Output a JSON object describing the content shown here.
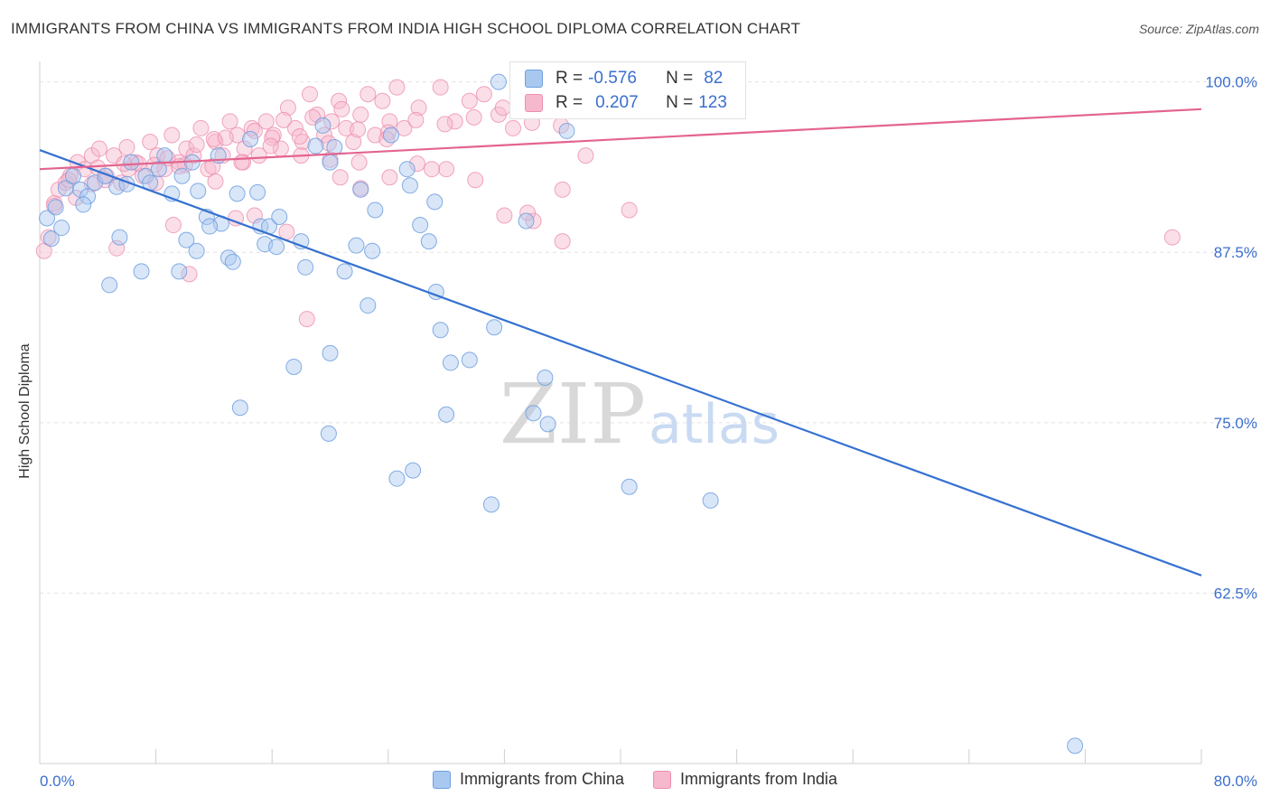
{
  "header": {
    "title": "IMMIGRANTS FROM CHINA VS IMMIGRANTS FROM INDIA HIGH SCHOOL DIPLOMA CORRELATION CHART",
    "source": "Source: ZipAtlas.com"
  },
  "watermark": {
    "zip": "ZIP",
    "atlas": "atlas"
  },
  "stats_box": {
    "china": {
      "r_label": "R =",
      "r_value": "-0.576",
      "n_label": "N =",
      "n_value": "82"
    },
    "india": {
      "r_label": "R =",
      "r_value": "0.207",
      "n_label": "N =",
      "n_value": "123"
    }
  },
  "legend": {
    "china": "Immigrants from China",
    "india": "Immigrants from India"
  },
  "colors": {
    "china_fill": "#a9c8ef",
    "china_stroke": "#6e9fe0",
    "china_line": "#3571d0",
    "india_fill": "#f6b8cc",
    "india_stroke": "#ee8fae",
    "india_line": "#e3648f",
    "tick_label": "#3b6fcf",
    "grid": "#e3e3e3"
  },
  "chart_data": {
    "type": "scatter",
    "title": "IMMIGRANTS FROM CHINA VS IMMIGRANTS FROM INDIA HIGH SCHOOL DIPLOMA CORRELATION CHART",
    "xlabel": "",
    "ylabel": "High School Diploma",
    "xlim": [
      0,
      80
    ],
    "ylim": [
      50,
      101.5
    ],
    "x_tick_labels": [
      "0.0%",
      "80.0%"
    ],
    "y_ticks": [
      62.5,
      75.0,
      87.5,
      100.0
    ],
    "y_tick_labels": [
      "62.5%",
      "75.0%",
      "87.5%",
      "100.0%"
    ],
    "grid": true,
    "legend_position": "bottom",
    "series": [
      {
        "name": "Immigrants from China",
        "r": -0.576,
        "n": 82,
        "trend": {
          "x": [
            0,
            80
          ],
          "y": [
            95.0,
            63.8
          ]
        },
        "points": [
          [
            0.5,
            90.0
          ],
          [
            0.8,
            88.5
          ],
          [
            1.1,
            90.8
          ],
          [
            1.5,
            89.3
          ],
          [
            1.8,
            92.2
          ],
          [
            2.3,
            93.1
          ],
          [
            2.8,
            92.1
          ],
          [
            3.3,
            91.6
          ],
          [
            3.8,
            92.6
          ],
          [
            4.5,
            93.1
          ],
          [
            5.3,
            92.3
          ],
          [
            5.5,
            88.6
          ],
          [
            6.3,
            94.1
          ],
          [
            7.0,
            86.1
          ],
          [
            7.3,
            93.1
          ],
          [
            7.6,
            92.6
          ],
          [
            8.2,
            93.6
          ],
          [
            8.6,
            94.6
          ],
          [
            9.1,
            91.8
          ],
          [
            9.6,
            86.1
          ],
          [
            10.1,
            88.4
          ],
          [
            10.5,
            94.1
          ],
          [
            10.8,
            87.6
          ],
          [
            11.5,
            90.1
          ],
          [
            12.3,
            94.6
          ],
          [
            12.5,
            89.6
          ],
          [
            13.0,
            87.1
          ],
          [
            13.3,
            86.8
          ],
          [
            13.6,
            91.8
          ],
          [
            14.5,
            95.8
          ],
          [
            15.0,
            91.9
          ],
          [
            15.2,
            89.4
          ],
          [
            15.5,
            88.1
          ],
          [
            15.8,
            89.4
          ],
          [
            16.5,
            90.1
          ],
          [
            18.0,
            88.3
          ],
          [
            19.0,
            95.3
          ],
          [
            19.5,
            96.8
          ],
          [
            20.0,
            94.1
          ],
          [
            20.3,
            95.2
          ],
          [
            21.8,
            88.0
          ],
          [
            22.1,
            92.1
          ],
          [
            22.6,
            83.6
          ],
          [
            22.9,
            87.6
          ],
          [
            23.1,
            90.6
          ],
          [
            24.2,
            96.1
          ],
          [
            25.3,
            93.6
          ],
          [
            26.2,
            89.5
          ],
          [
            26.8,
            88.3
          ],
          [
            27.3,
            84.6
          ],
          [
            27.6,
            81.8
          ],
          [
            28.3,
            79.4
          ],
          [
            29.6,
            79.6
          ],
          [
            31.3,
            82.0
          ],
          [
            31.6,
            100.0
          ],
          [
            33.5,
            89.8
          ],
          [
            34.8,
            78.3
          ],
          [
            36.3,
            96.4
          ],
          [
            21.0,
            86.1
          ],
          [
            20.0,
            80.1
          ],
          [
            17.5,
            79.1
          ],
          [
            13.8,
            76.1
          ],
          [
            19.9,
            74.2
          ],
          [
            28.0,
            75.6
          ],
          [
            34.0,
            75.7
          ],
          [
            35.0,
            74.9
          ],
          [
            24.6,
            70.9
          ],
          [
            25.7,
            71.5
          ],
          [
            31.1,
            69.0
          ],
          [
            40.6,
            70.3
          ],
          [
            46.2,
            69.3
          ],
          [
            71.3,
            51.3
          ],
          [
            4.8,
            85.1
          ],
          [
            9.8,
            93.1
          ],
          [
            11.7,
            89.4
          ],
          [
            16.3,
            87.9
          ],
          [
            18.3,
            86.4
          ],
          [
            6.0,
            92.5
          ],
          [
            3.0,
            91.0
          ],
          [
            10.9,
            92.0
          ],
          [
            25.5,
            92.4
          ],
          [
            27.2,
            91.2
          ]
        ]
      },
      {
        "name": "Immigrants from India",
        "r": 0.207,
        "n": 123,
        "trend": {
          "x": [
            0,
            80
          ],
          "y": [
            93.6,
            98.0
          ]
        },
        "points": [
          [
            0.3,
            87.6
          ],
          [
            0.6,
            88.6
          ],
          [
            1.0,
            91.1
          ],
          [
            1.3,
            92.1
          ],
          [
            1.8,
            92.6
          ],
          [
            2.1,
            93.1
          ],
          [
            2.6,
            94.1
          ],
          [
            3.1,
            93.6
          ],
          [
            3.6,
            94.6
          ],
          [
            4.1,
            95.1
          ],
          [
            4.6,
            93.1
          ],
          [
            5.1,
            94.6
          ],
          [
            5.6,
            92.6
          ],
          [
            6.1,
            93.6
          ],
          [
            6.6,
            94.1
          ],
          [
            7.1,
            93.1
          ],
          [
            7.6,
            95.6
          ],
          [
            8.1,
            94.6
          ],
          [
            8.6,
            93.6
          ],
          [
            9.1,
            96.1
          ],
          [
            9.6,
            94.1
          ],
          [
            10.1,
            95.1
          ],
          [
            10.6,
            94.6
          ],
          [
            11.1,
            96.6
          ],
          [
            11.6,
            93.6
          ],
          [
            12.1,
            95.6
          ],
          [
            12.6,
            94.6
          ],
          [
            13.1,
            97.1
          ],
          [
            13.6,
            96.1
          ],
          [
            14.1,
            95.1
          ],
          [
            14.6,
            96.6
          ],
          [
            15.1,
            94.6
          ],
          [
            15.6,
            97.1
          ],
          [
            16.1,
            96.1
          ],
          [
            16.6,
            95.1
          ],
          [
            17.1,
            98.1
          ],
          [
            17.6,
            96.6
          ],
          [
            18.1,
            95.6
          ],
          [
            18.6,
            99.1
          ],
          [
            19.1,
            97.6
          ],
          [
            19.6,
            96.1
          ],
          [
            20.1,
            97.1
          ],
          [
            20.6,
            98.6
          ],
          [
            21.1,
            96.6
          ],
          [
            21.6,
            95.6
          ],
          [
            22.1,
            97.6
          ],
          [
            22.6,
            99.1
          ],
          [
            23.1,
            96.1
          ],
          [
            23.6,
            98.6
          ],
          [
            24.1,
            97.1
          ],
          [
            24.6,
            99.6
          ],
          [
            25.1,
            96.6
          ],
          [
            26.1,
            98.1
          ],
          [
            27.6,
            99.6
          ],
          [
            28.6,
            97.1
          ],
          [
            29.6,
            98.6
          ],
          [
            30.6,
            99.1
          ],
          [
            31.6,
            97.6
          ],
          [
            32.6,
            96.6
          ],
          [
            34.6,
            99.1
          ],
          [
            36.0,
            92.1
          ],
          [
            37.6,
            94.6
          ],
          [
            40.6,
            90.6
          ],
          [
            78.0,
            88.6
          ],
          [
            2.0,
            92.8
          ],
          [
            4.0,
            93.7
          ],
          [
            6.0,
            95.2
          ],
          [
            8.0,
            92.6
          ],
          [
            10.0,
            93.9
          ],
          [
            12.0,
            95.8
          ],
          [
            14.0,
            94.1
          ],
          [
            16.0,
            95.9
          ],
          [
            18.0,
            94.6
          ],
          [
            20.0,
            94.3
          ],
          [
            22.0,
            94.1
          ],
          [
            24.0,
            96.3
          ],
          [
            26.0,
            94.0
          ],
          [
            28.0,
            93.6
          ],
          [
            30.0,
            92.8
          ],
          [
            32.0,
            90.2
          ],
          [
            34.0,
            89.8
          ],
          [
            36.0,
            88.3
          ],
          [
            5.3,
            87.8
          ],
          [
            9.2,
            89.5
          ],
          [
            10.3,
            85.9
          ],
          [
            12.1,
            92.7
          ],
          [
            13.5,
            90.0
          ],
          [
            14.8,
            90.2
          ],
          [
            17.0,
            89.0
          ],
          [
            18.4,
            82.6
          ],
          [
            20.7,
            93.0
          ],
          [
            22.1,
            92.2
          ],
          [
            24.1,
            93.0
          ],
          [
            27.0,
            93.6
          ],
          [
            33.6,
            90.4
          ],
          [
            3.6,
            92.5
          ],
          [
            5.8,
            94.0
          ],
          [
            7.9,
            93.9
          ],
          [
            9.6,
            93.8
          ],
          [
            11.9,
            93.8
          ],
          [
            13.9,
            94.1
          ],
          [
            15.9,
            95.3
          ],
          [
            17.9,
            96.0
          ],
          [
            19.9,
            95.5
          ],
          [
            21.9,
            96.5
          ],
          [
            23.9,
            95.8
          ],
          [
            25.9,
            97.2
          ],
          [
            27.9,
            96.9
          ],
          [
            29.9,
            97.4
          ],
          [
            31.9,
            98.1
          ],
          [
            33.9,
            97.0
          ],
          [
            35.9,
            96.8
          ],
          [
            1.0,
            90.9
          ],
          [
            2.5,
            91.5
          ],
          [
            4.5,
            92.8
          ],
          [
            6.8,
            94.0
          ],
          [
            8.8,
            94.4
          ],
          [
            10.8,
            95.4
          ],
          [
            12.8,
            95.9
          ],
          [
            14.8,
            96.4
          ],
          [
            16.8,
            97.2
          ],
          [
            18.8,
            97.4
          ],
          [
            20.8,
            98.0
          ]
        ]
      }
    ]
  }
}
